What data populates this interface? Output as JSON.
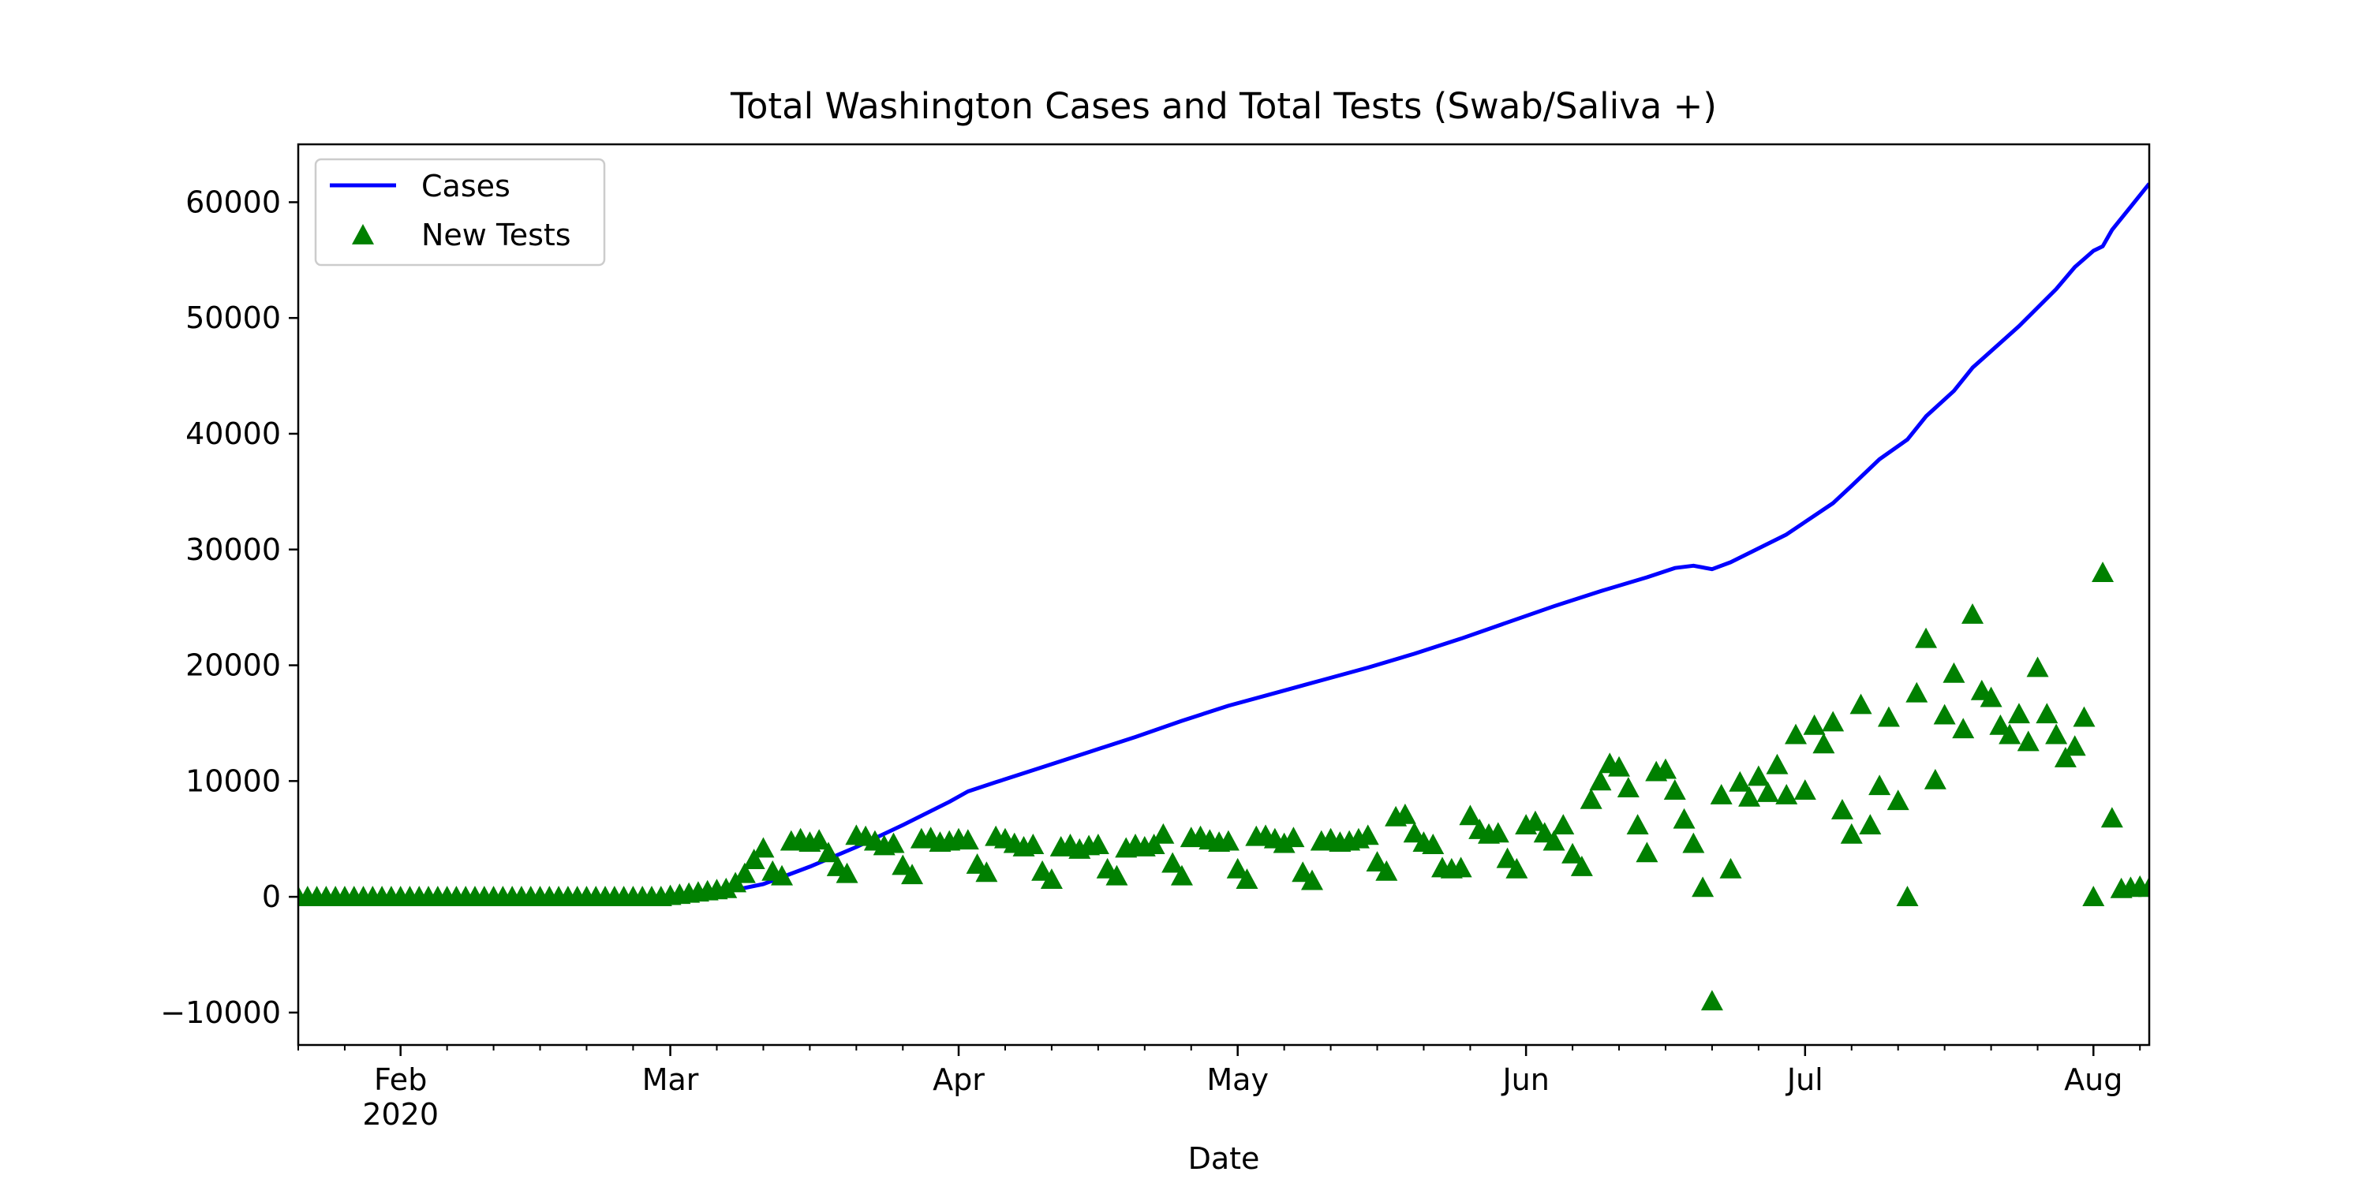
{
  "chart_data": {
    "type": "line",
    "title": "Total Washington Cases and Total Tests (Swab/Saliva +)",
    "xlabel": "Date",
    "ylabel": "",
    "x_start_date": "2020-01-21",
    "xlim_day_index": [
      0,
      199
    ],
    "ylim": [
      -12800,
      65000
    ],
    "yticks": [
      -10000,
      0,
      10000,
      20000,
      30000,
      40000,
      50000,
      60000
    ],
    "ytick_labels": [
      "−10000",
      "0",
      "10000",
      "20000",
      "30000",
      "40000",
      "50000",
      "60000"
    ],
    "xticks_major": [
      {
        "day": 11,
        "label": "Feb",
        "sublabel": "2020"
      },
      {
        "day": 40,
        "label": "Mar"
      },
      {
        "day": 71,
        "label": "Apr"
      },
      {
        "day": 101,
        "label": "May"
      },
      {
        "day": 132,
        "label": "Jun"
      },
      {
        "day": 162,
        "label": "Jul"
      },
      {
        "day": 193,
        "label": "Aug"
      }
    ],
    "xticks_minor_days": [
      0,
      5,
      16,
      21,
      26,
      31,
      36,
      45,
      50,
      55,
      60,
      65,
      76,
      81,
      86,
      91,
      96,
      106,
      111,
      116,
      121,
      126,
      137,
      142,
      147,
      152,
      157,
      167,
      172,
      177,
      182,
      187,
      198
    ],
    "legend": {
      "position": "upper-left",
      "entries": [
        "Cases",
        "New Tests"
      ]
    },
    "series": [
      {
        "name": "Cases",
        "style": "line",
        "color": "#0000ff",
        "points": [
          [
            0,
            0
          ],
          [
            35,
            2
          ],
          [
            40,
            40
          ],
          [
            45,
            280
          ],
          [
            47,
            600
          ],
          [
            50,
            1100
          ],
          [
            55,
            2600
          ],
          [
            60,
            4300
          ],
          [
            65,
            6200
          ],
          [
            70,
            8200
          ],
          [
            72,
            9100
          ],
          [
            75,
            9900
          ],
          [
            80,
            11200
          ],
          [
            85,
            12500
          ],
          [
            90,
            13800
          ],
          [
            95,
            15200
          ],
          [
            100,
            16500
          ],
          [
            105,
            17600
          ],
          [
            110,
            18700
          ],
          [
            115,
            19800
          ],
          [
            120,
            21000
          ],
          [
            125,
            22300
          ],
          [
            130,
            23700
          ],
          [
            135,
            25100
          ],
          [
            140,
            26400
          ],
          [
            145,
            27600
          ],
          [
            148,
            28400
          ],
          [
            150,
            28600
          ],
          [
            152,
            28300
          ],
          [
            154,
            28900
          ],
          [
            160,
            31300
          ],
          [
            165,
            34000
          ],
          [
            167,
            35500
          ],
          [
            170,
            37800
          ],
          [
            173,
            39500
          ],
          [
            175,
            41500
          ],
          [
            178,
            43700
          ],
          [
            180,
            45700
          ],
          [
            185,
            49300
          ],
          [
            189,
            52500
          ],
          [
            191,
            54400
          ],
          [
            193,
            55800
          ],
          [
            194,
            56200
          ],
          [
            195,
            57600
          ],
          [
            197,
            59600
          ],
          [
            199,
            61600
          ]
        ]
      },
      {
        "name": "New Tests",
        "style": "marker-triangle",
        "color": "#008000",
        "points": [
          [
            0,
            0
          ],
          [
            1,
            0
          ],
          [
            2,
            0
          ],
          [
            3,
            0
          ],
          [
            4,
            0
          ],
          [
            5,
            0
          ],
          [
            6,
            0
          ],
          [
            7,
            0
          ],
          [
            8,
            0
          ],
          [
            9,
            0
          ],
          [
            10,
            0
          ],
          [
            11,
            0
          ],
          [
            12,
            0
          ],
          [
            13,
            0
          ],
          [
            14,
            0
          ],
          [
            15,
            0
          ],
          [
            16,
            0
          ],
          [
            17,
            0
          ],
          [
            18,
            0
          ],
          [
            19,
            0
          ],
          [
            20,
            0
          ],
          [
            21,
            0
          ],
          [
            22,
            0
          ],
          [
            23,
            0
          ],
          [
            24,
            0
          ],
          [
            25,
            0
          ],
          [
            26,
            0
          ],
          [
            27,
            0
          ],
          [
            28,
            0
          ],
          [
            29,
            0
          ],
          [
            30,
            0
          ],
          [
            31,
            0
          ],
          [
            32,
            0
          ],
          [
            33,
            0
          ],
          [
            34,
            0
          ],
          [
            35,
            0
          ],
          [
            36,
            0
          ],
          [
            37,
            0
          ],
          [
            38,
            0
          ],
          [
            39,
            0
          ],
          [
            40,
            100
          ],
          [
            41,
            200
          ],
          [
            42,
            300
          ],
          [
            43,
            400
          ],
          [
            44,
            500
          ],
          [
            45,
            600
          ],
          [
            46,
            700
          ],
          [
            47,
            1200
          ],
          [
            48,
            2000
          ],
          [
            49,
            3200
          ],
          [
            50,
            4200
          ],
          [
            51,
            2200
          ],
          [
            52,
            1800
          ],
          [
            53,
            4800
          ],
          [
            54,
            5000
          ],
          [
            55,
            4700
          ],
          [
            56,
            4900
          ],
          [
            57,
            3800
          ],
          [
            58,
            2600
          ],
          [
            59,
            2000
          ],
          [
            60,
            5300
          ],
          [
            61,
            5200
          ],
          [
            62,
            4800
          ],
          [
            63,
            4400
          ],
          [
            64,
            4600
          ],
          [
            65,
            2700
          ],
          [
            66,
            1900
          ],
          [
            67,
            5000
          ],
          [
            68,
            5100
          ],
          [
            69,
            4700
          ],
          [
            70,
            4800
          ],
          [
            71,
            5000
          ],
          [
            72,
            4900
          ],
          [
            73,
            2800
          ],
          [
            74,
            2100
          ],
          [
            75,
            5200
          ],
          [
            76,
            5000
          ],
          [
            77,
            4600
          ],
          [
            78,
            4300
          ],
          [
            79,
            4500
          ],
          [
            80,
            2200
          ],
          [
            81,
            1500
          ],
          [
            82,
            4300
          ],
          [
            83,
            4500
          ],
          [
            84,
            4100
          ],
          [
            85,
            4400
          ],
          [
            86,
            4500
          ],
          [
            87,
            2400
          ],
          [
            88,
            1800
          ],
          [
            89,
            4200
          ],
          [
            90,
            4500
          ],
          [
            91,
            4300
          ],
          [
            92,
            4500
          ],
          [
            93,
            5400
          ],
          [
            94,
            2900
          ],
          [
            95,
            1800
          ],
          [
            96,
            5100
          ],
          [
            97,
            5200
          ],
          [
            98,
            4900
          ],
          [
            99,
            4700
          ],
          [
            100,
            4800
          ],
          [
            101,
            2400
          ],
          [
            102,
            1500
          ],
          [
            103,
            5200
          ],
          [
            104,
            5300
          ],
          [
            105,
            5000
          ],
          [
            106,
            4600
          ],
          [
            107,
            5100
          ],
          [
            108,
            2100
          ],
          [
            109,
            1400
          ],
          [
            110,
            4800
          ],
          [
            111,
            5000
          ],
          [
            112,
            4700
          ],
          [
            113,
            4800
          ],
          [
            114,
            5000
          ],
          [
            115,
            5300
          ],
          [
            116,
            3000
          ],
          [
            117,
            2200
          ],
          [
            118,
            6900
          ],
          [
            119,
            7100
          ],
          [
            120,
            5500
          ],
          [
            121,
            4700
          ],
          [
            122,
            4500
          ],
          [
            123,
            2500
          ],
          [
            124,
            2400
          ],
          [
            125,
            2500
          ],
          [
            126,
            7000
          ],
          [
            127,
            5800
          ],
          [
            128,
            5400
          ],
          [
            129,
            5500
          ],
          [
            130,
            3300
          ],
          [
            131,
            2400
          ],
          [
            132,
            6200
          ],
          [
            133,
            6500
          ],
          [
            134,
            5500
          ],
          [
            135,
            4800
          ],
          [
            136,
            6200
          ],
          [
            137,
            3700
          ],
          [
            138,
            2600
          ],
          [
            139,
            8400
          ],
          [
            140,
            10000
          ],
          [
            141,
            11500
          ],
          [
            142,
            11200
          ],
          [
            143,
            9400
          ],
          [
            144,
            6200
          ],
          [
            145,
            3800
          ],
          [
            146,
            10800
          ],
          [
            147,
            11000
          ],
          [
            148,
            9200
          ],
          [
            149,
            6700
          ],
          [
            150,
            4600
          ],
          [
            151,
            800
          ],
          [
            152,
            -9000
          ],
          [
            153,
            8800
          ],
          [
            154,
            2400
          ],
          [
            155,
            9900
          ],
          [
            156,
            8600
          ],
          [
            157,
            10400
          ],
          [
            158,
            9000
          ],
          [
            159,
            11400
          ],
          [
            160,
            8800
          ],
          [
            161,
            14000
          ],
          [
            162,
            9200
          ],
          [
            163,
            14800
          ],
          [
            164,
            13200
          ],
          [
            165,
            15100
          ],
          [
            166,
            7500
          ],
          [
            167,
            5400
          ],
          [
            168,
            16600
          ],
          [
            169,
            6200
          ],
          [
            170,
            9600
          ],
          [
            171,
            15500
          ],
          [
            172,
            8300
          ],
          [
            173,
            0
          ],
          [
            174,
            17600
          ],
          [
            175,
            22300
          ],
          [
            176,
            10100
          ],
          [
            177,
            15700
          ],
          [
            178,
            19300
          ],
          [
            179,
            14500
          ],
          [
            180,
            24400
          ],
          [
            181,
            17800
          ],
          [
            182,
            17200
          ],
          [
            183,
            14800
          ],
          [
            184,
            14000
          ],
          [
            185,
            15800
          ],
          [
            186,
            13400
          ],
          [
            187,
            19800
          ],
          [
            188,
            15800
          ],
          [
            189,
            14000
          ],
          [
            190,
            12000
          ],
          [
            191,
            13000
          ],
          [
            192,
            15500
          ],
          [
            193,
            0
          ],
          [
            194,
            28000
          ],
          [
            195,
            6800
          ],
          [
            196,
            700
          ],
          [
            197,
            800
          ],
          [
            198,
            900
          ],
          [
            199,
            800
          ]
        ]
      }
    ]
  }
}
